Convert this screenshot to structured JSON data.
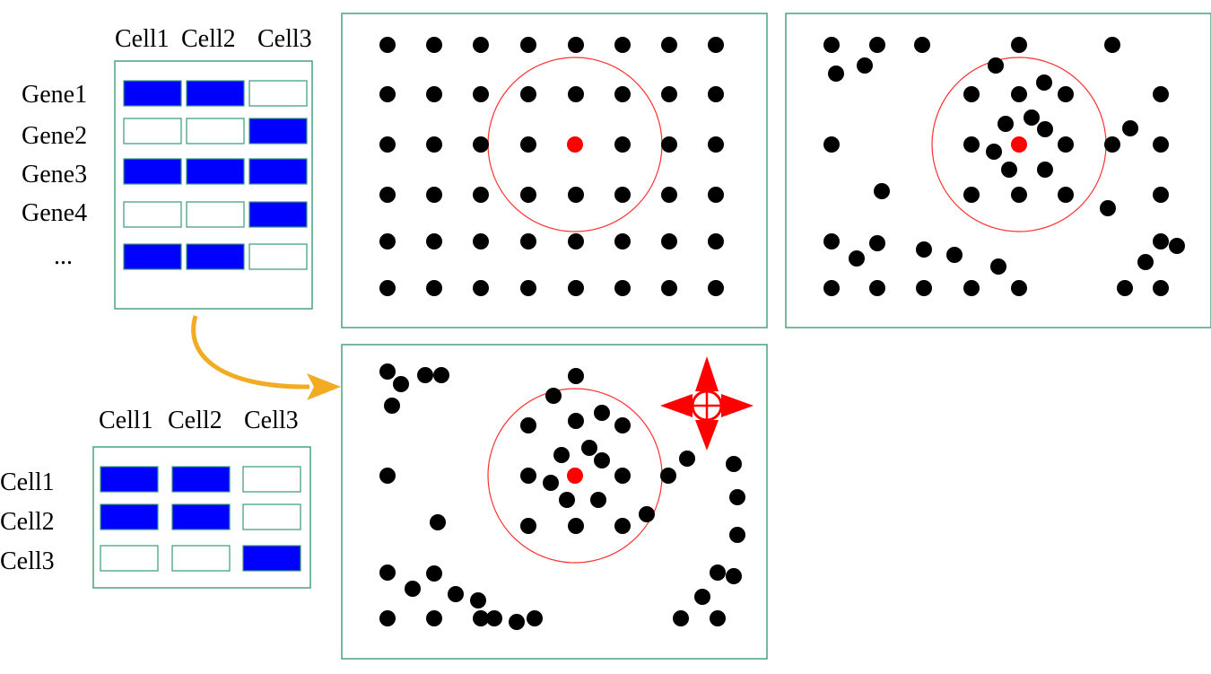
{
  "colors": {
    "frame": "#4aa37a",
    "filled_cell": "#0000ff",
    "empty_cell": "#ffffff",
    "cell_border": "#3a9a7a",
    "dot": "#000000",
    "center_dot": "#ff0000",
    "radius_circle": "#ff3030",
    "arrow": "#f2ac24",
    "move_marker": "#ff0000"
  },
  "gene_matrix": {
    "columns": [
      "Cell1",
      "Cell2",
      "Cell3"
    ],
    "rows": [
      "Gene1",
      "Gene2",
      "Gene3",
      "Gene4",
      "..."
    ],
    "values": [
      [
        1,
        1,
        0
      ],
      [
        0,
        0,
        1
      ],
      [
        1,
        1,
        1
      ],
      [
        0,
        0,
        1
      ],
      [
        1,
        1,
        0
      ]
    ]
  },
  "cell_matrix": {
    "columns": [
      "Cell1",
      "Cell2",
      "Cell3"
    ],
    "rows": [
      "Cell1",
      "Cell2",
      "Cell3"
    ],
    "values": [
      [
        1,
        1,
        0
      ],
      [
        1,
        1,
        0
      ],
      [
        0,
        0,
        1
      ]
    ]
  },
  "panels": [
    {
      "name": "uniform-grid-panel",
      "has_move_marker": false
    },
    {
      "name": "clustered-panel",
      "has_move_marker": false
    },
    {
      "name": "rearranged-panel",
      "has_move_marker": true
    }
  ],
  "icons": [
    "arrow-icon",
    "move-icon"
  ]
}
